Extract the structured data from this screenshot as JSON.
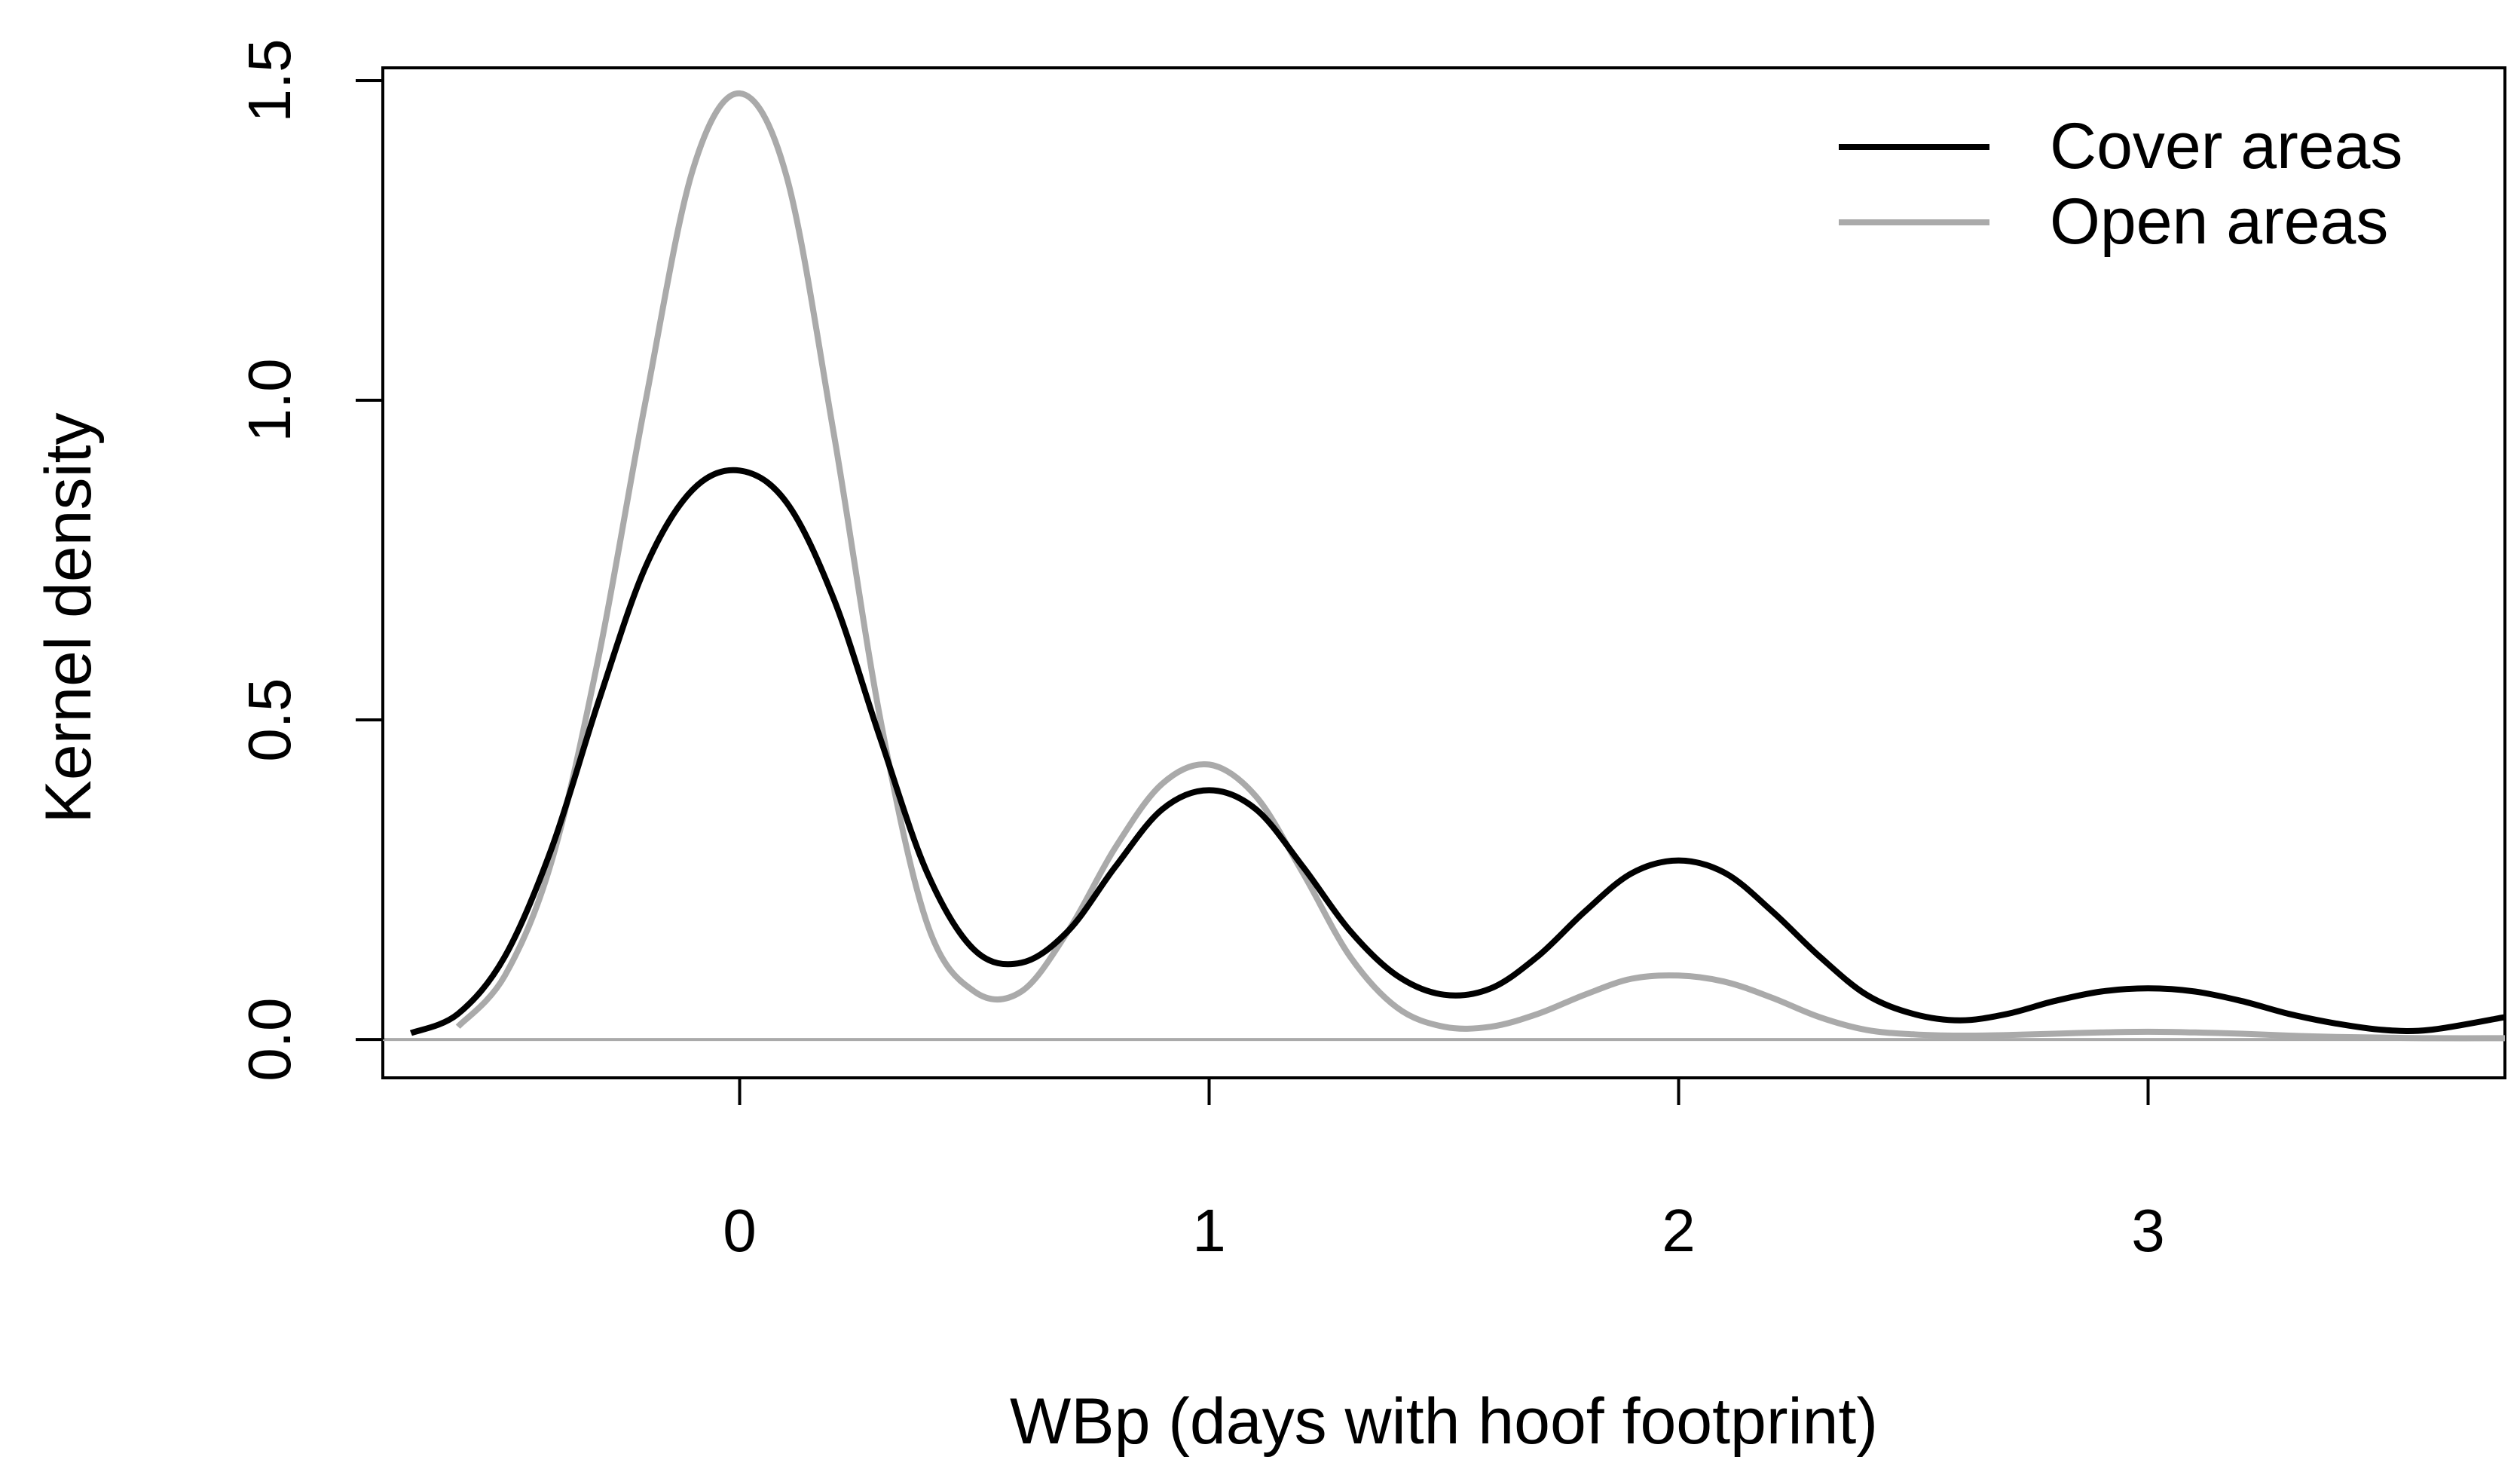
{
  "chart_data": {
    "type": "line",
    "xlabel": "WBp (days with hoof footprint)",
    "ylabel": "Kernel density",
    "xlim": [
      -0.76,
      3.76
    ],
    "ylim": [
      -0.06,
      1.52
    ],
    "x_ticks": [
      0,
      1,
      2,
      3
    ],
    "x_tick_labels": [
      "0",
      "1",
      "2",
      "3"
    ],
    "y_ticks": [
      0.0,
      0.5,
      1.0,
      1.5
    ],
    "y_tick_labels": [
      "0.0",
      "0.5",
      "1.0",
      "1.5"
    ],
    "grid": false,
    "legend_position": "top-right",
    "baseline_y": 0,
    "series": [
      {
        "name": "Cover areas",
        "color": "#000000",
        "x": [
          -0.7,
          -0.6,
          -0.5,
          -0.4,
          -0.3,
          -0.2,
          -0.1,
          0.0,
          0.1,
          0.2,
          0.3,
          0.4,
          0.5,
          0.6,
          0.7,
          0.8,
          0.9,
          1.0,
          1.1,
          1.2,
          1.3,
          1.4,
          1.5,
          1.6,
          1.7,
          1.8,
          1.9,
          2.0,
          2.1,
          2.2,
          2.3,
          2.4,
          2.5,
          2.6,
          2.7,
          2.8,
          2.9,
          3.0,
          3.1,
          3.2,
          3.3,
          3.4,
          3.5,
          3.6,
          3.76
        ],
        "y": [
          0.01,
          0.04,
          0.13,
          0.3,
          0.53,
          0.74,
          0.86,
          0.89,
          0.84,
          0.69,
          0.47,
          0.26,
          0.14,
          0.12,
          0.17,
          0.27,
          0.36,
          0.39,
          0.36,
          0.27,
          0.17,
          0.1,
          0.07,
          0.08,
          0.13,
          0.2,
          0.26,
          0.28,
          0.26,
          0.2,
          0.13,
          0.07,
          0.04,
          0.03,
          0.04,
          0.06,
          0.075,
          0.08,
          0.075,
          0.06,
          0.04,
          0.025,
          0.015,
          0.015,
          0.035
        ]
      },
      {
        "name": "Open areas",
        "color": "#aaaaaa",
        "x": [
          -0.6,
          -0.5,
          -0.4,
          -0.3,
          -0.2,
          -0.1,
          0.0,
          0.1,
          0.2,
          0.3,
          0.4,
          0.5,
          0.6,
          0.7,
          0.8,
          0.9,
          1.0,
          1.1,
          1.2,
          1.3,
          1.4,
          1.5,
          1.6,
          1.7,
          1.8,
          1.9,
          2.0,
          2.1,
          2.2,
          2.3,
          2.4,
          2.5,
          2.6,
          2.7,
          2.8,
          2.9,
          3.0,
          3.1,
          3.2,
          3.3,
          3.4,
          3.5,
          3.6,
          3.76
        ],
        "y": [
          0.02,
          0.1,
          0.28,
          0.6,
          1.0,
          1.36,
          1.48,
          1.35,
          0.95,
          0.5,
          0.18,
          0.075,
          0.075,
          0.17,
          0.3,
          0.4,
          0.43,
          0.38,
          0.26,
          0.13,
          0.05,
          0.02,
          0.02,
          0.04,
          0.07,
          0.095,
          0.1,
          0.09,
          0.065,
          0.035,
          0.015,
          0.008,
          0.006,
          0.007,
          0.009,
          0.011,
          0.012,
          0.011,
          0.009,
          0.006,
          0.004,
          0.003,
          0.002,
          0.002
        ]
      }
    ]
  }
}
